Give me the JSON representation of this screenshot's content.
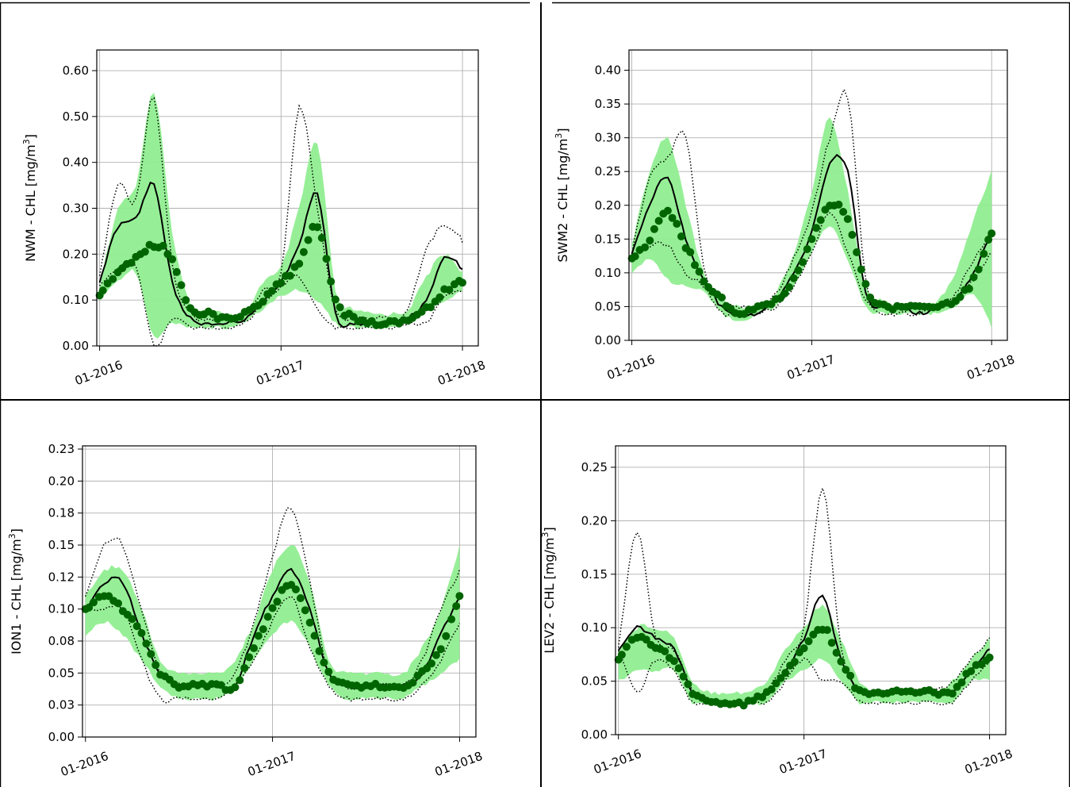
{
  "chart_data": [
    {
      "type": "line",
      "id": "NWM",
      "ylabel_prefix": "NWM - CHL [mg/m",
      "ylabel_sup": "3",
      "ylabel_suffix": "]",
      "ylim": [
        0,
        0.645
      ],
      "yticks": [
        0.0,
        0.1,
        0.2,
        0.3,
        0.4,
        0.5,
        0.6
      ],
      "yticklabels": [
        "0.00",
        "0.10",
        "0.20",
        "0.30",
        "0.40",
        "0.50",
        "0.60"
      ],
      "xticklabels": [
        "01-2016",
        "01-2017",
        "01-2018"
      ],
      "grid": true,
      "x": [
        0,
        0.1,
        0.2,
        0.3,
        0.4,
        0.5,
        0.6,
        0.7,
        0.8,
        0.9,
        1.0,
        1.1,
        1.2,
        1.3,
        1.4,
        1.5,
        1.6,
        1.7,
        1.8,
        1.9,
        2.0
      ],
      "series": [
        {
          "role": "band_high",
          "values": [
            0.13,
            0.3,
            0.35,
            0.55,
            0.25,
            0.09,
            0.08,
            0.07,
            0.07,
            0.14,
            0.17,
            0.3,
            0.44,
            0.12,
            0.08,
            0.07,
            0.07,
            0.08,
            0.15,
            0.2,
            0.16
          ]
        },
        {
          "role": "band_low",
          "values": [
            0.1,
            0.14,
            0.16,
            0.02,
            0.05,
            0.04,
            0.04,
            0.04,
            0.05,
            0.08,
            0.11,
            0.12,
            0.1,
            0.05,
            0.04,
            0.04,
            0.04,
            0.05,
            0.08,
            0.1,
            0.12
          ]
        },
        {
          "role": "dotted_upper",
          "values": [
            0.15,
            0.35,
            0.32,
            0.54,
            0.18,
            0.07,
            0.06,
            0.06,
            0.07,
            0.12,
            0.16,
            0.52,
            0.3,
            0.08,
            0.06,
            0.06,
            0.06,
            0.08,
            0.21,
            0.26,
            0.23
          ]
        },
        {
          "role": "dotted_lower",
          "values": [
            0.13,
            0.17,
            0.17,
            0.0,
            0.06,
            0.04,
            0.04,
            0.04,
            0.05,
            0.09,
            0.13,
            0.15,
            0.08,
            0.04,
            0.04,
            0.04,
            0.04,
            0.05,
            0.05,
            0.11,
            0.12
          ]
        },
        {
          "role": "line_mean",
          "values": [
            0.14,
            0.26,
            0.28,
            0.35,
            0.14,
            0.06,
            0.05,
            0.05,
            0.06,
            0.1,
            0.14,
            0.22,
            0.33,
            0.07,
            0.05,
            0.05,
            0.05,
            0.06,
            0.1,
            0.19,
            0.17
          ]
        },
        {
          "role": "dots",
          "values": [
            0.11,
            0.16,
            0.19,
            0.22,
            0.19,
            0.08,
            0.07,
            0.06,
            0.07,
            0.1,
            0.14,
            0.18,
            0.26,
            0.1,
            0.06,
            0.05,
            0.05,
            0.06,
            0.08,
            0.12,
            0.14
          ]
        }
      ]
    },
    {
      "type": "line",
      "id": "SWM2",
      "ylabel_prefix": "SWM2 - CHL [mg/m",
      "ylabel_sup": "3",
      "ylabel_suffix": "]",
      "ylim": [
        0,
        0.43
      ],
      "yticks": [
        0.0,
        0.05,
        0.1,
        0.15,
        0.2,
        0.25,
        0.3,
        0.35,
        0.4
      ],
      "yticklabels": [
        "0.00",
        "0.05",
        "0.10",
        "0.15",
        "0.20",
        "0.25",
        "0.30",
        "0.35",
        "0.40"
      ],
      "xticklabels": [
        "01-2016",
        "01-2017",
        "01-2018"
      ],
      "grid": true,
      "x": [
        0,
        0.1,
        0.2,
        0.3,
        0.4,
        0.5,
        0.6,
        0.7,
        0.8,
        0.9,
        1.0,
        1.1,
        1.2,
        1.3,
        1.4,
        1.5,
        1.6,
        1.7,
        1.8,
        1.9,
        2.0
      ],
      "series": [
        {
          "role": "band_high",
          "values": [
            0.14,
            0.25,
            0.3,
            0.2,
            0.1,
            0.06,
            0.05,
            0.05,
            0.07,
            0.13,
            0.22,
            0.33,
            0.22,
            0.08,
            0.06,
            0.05,
            0.05,
            0.06,
            0.1,
            0.18,
            0.25
          ]
        },
        {
          "role": "band_low",
          "values": [
            0.1,
            0.12,
            0.09,
            0.08,
            0.07,
            0.04,
            0.03,
            0.04,
            0.05,
            0.08,
            0.13,
            0.17,
            0.12,
            0.05,
            0.04,
            0.04,
            0.04,
            0.04,
            0.05,
            0.07,
            0.02
          ]
        },
        {
          "role": "dotted_upper",
          "values": [
            0.13,
            0.24,
            0.27,
            0.3,
            0.11,
            0.06,
            0.05,
            0.05,
            0.07,
            0.12,
            0.19,
            0.3,
            0.36,
            0.09,
            0.05,
            0.05,
            0.05,
            0.05,
            0.07,
            0.12,
            0.16
          ]
        },
        {
          "role": "dotted_lower",
          "values": [
            0.12,
            0.14,
            0.14,
            0.1,
            0.08,
            0.04,
            0.04,
            0.04,
            0.05,
            0.08,
            0.13,
            0.19,
            0.13,
            0.06,
            0.04,
            0.04,
            0.04,
            0.05,
            0.06,
            0.09,
            0.13
          ]
        },
        {
          "role": "line_mean",
          "values": [
            0.13,
            0.2,
            0.24,
            0.15,
            0.09,
            0.05,
            0.04,
            0.04,
            0.06,
            0.1,
            0.16,
            0.26,
            0.25,
            0.07,
            0.05,
            0.05,
            0.04,
            0.05,
            0.06,
            0.1,
            0.16
          ]
        },
        {
          "role": "dots",
          "values": [
            0.12,
            0.15,
            0.19,
            0.14,
            0.09,
            0.06,
            0.04,
            0.05,
            0.06,
            0.09,
            0.15,
            0.2,
            0.18,
            0.08,
            0.05,
            0.05,
            0.05,
            0.05,
            0.06,
            0.09,
            0.16
          ]
        }
      ]
    },
    {
      "type": "line",
      "id": "ION1",
      "ylabel_prefix": "ION1 - CHL [mg/m",
      "ylabel_sup": "3",
      "ylabel_suffix": "]",
      "ylim": [
        0,
        0.2275
      ],
      "yticks": [
        0.0,
        0.025,
        0.05,
        0.075,
        0.1,
        0.125,
        0.15,
        0.175,
        0.2,
        0.225
      ],
      "yticklabels": [
        "0.00",
        "0.03",
        "0.05",
        "0.08",
        "0.10",
        "0.12",
        "0.15",
        "0.18",
        "0.20",
        "0.23"
      ],
      "xticklabels": [
        "01-2016",
        "01-2017",
        "01-2018"
      ],
      "grid": true,
      "x": [
        0,
        0.1,
        0.2,
        0.3,
        0.4,
        0.5,
        0.6,
        0.7,
        0.8,
        0.9,
        1.0,
        1.1,
        1.2,
        1.3,
        1.4,
        1.5,
        1.6,
        1.7,
        1.8,
        1.9,
        2.0
      ],
      "series": [
        {
          "role": "band_high",
          "values": [
            0.11,
            0.13,
            0.13,
            0.1,
            0.06,
            0.05,
            0.05,
            0.05,
            0.06,
            0.09,
            0.13,
            0.15,
            0.12,
            0.06,
            0.05,
            0.05,
            0.05,
            0.05,
            0.07,
            0.1,
            0.15
          ]
        },
        {
          "role": "band_low",
          "values": [
            0.08,
            0.09,
            0.08,
            0.06,
            0.04,
            0.03,
            0.03,
            0.03,
            0.04,
            0.06,
            0.08,
            0.09,
            0.07,
            0.04,
            0.03,
            0.03,
            0.03,
            0.03,
            0.04,
            0.05,
            0.06
          ]
        },
        {
          "role": "dotted_upper",
          "values": [
            0.11,
            0.15,
            0.15,
            0.1,
            0.05,
            0.04,
            0.04,
            0.04,
            0.05,
            0.09,
            0.14,
            0.18,
            0.12,
            0.05,
            0.04,
            0.04,
            0.04,
            0.04,
            0.06,
            0.1,
            0.13
          ]
        },
        {
          "role": "dotted_lower",
          "values": [
            0.1,
            0.1,
            0.1,
            0.06,
            0.03,
            0.03,
            0.03,
            0.03,
            0.04,
            0.06,
            0.09,
            0.11,
            0.07,
            0.04,
            0.03,
            0.03,
            0.03,
            0.03,
            0.04,
            0.06,
            0.09
          ]
        },
        {
          "role": "line_mean",
          "values": [
            0.1,
            0.12,
            0.12,
            0.08,
            0.05,
            0.04,
            0.04,
            0.04,
            0.04,
            0.08,
            0.11,
            0.13,
            0.1,
            0.05,
            0.04,
            0.04,
            0.04,
            0.04,
            0.05,
            0.08,
            0.11
          ]
        },
        {
          "role": "dots",
          "values": [
            0.1,
            0.11,
            0.1,
            0.08,
            0.05,
            0.04,
            0.04,
            0.04,
            0.04,
            0.07,
            0.1,
            0.12,
            0.09,
            0.05,
            0.04,
            0.04,
            0.04,
            0.04,
            0.05,
            0.07,
            0.11
          ]
        }
      ]
    },
    {
      "type": "line",
      "id": "LEV2",
      "ylabel_prefix": "LEV2 - CHL [mg/m",
      "ylabel_sup": "3",
      "ylabel_suffix": "]",
      "ylim": [
        0,
        0.27
      ],
      "yticks": [
        0.0,
        0.05,
        0.1,
        0.15,
        0.2,
        0.25
      ],
      "yticklabels": [
        "0.00",
        "0.05",
        "0.10",
        "0.15",
        "0.20",
        "0.25"
      ],
      "xticklabels": [
        "01-2016",
        "01-2017",
        "01-2018"
      ],
      "grid": true,
      "x": [
        0,
        0.1,
        0.2,
        0.3,
        0.4,
        0.5,
        0.6,
        0.7,
        0.8,
        0.9,
        1.0,
        1.1,
        1.2,
        1.3,
        1.4,
        1.5,
        1.6,
        1.7,
        1.8,
        1.9,
        2.0
      ],
      "series": [
        {
          "role": "band_high",
          "values": [
            0.08,
            0.1,
            0.1,
            0.09,
            0.05,
            0.04,
            0.04,
            0.04,
            0.05,
            0.08,
            0.1,
            0.12,
            0.09,
            0.05,
            0.04,
            0.04,
            0.04,
            0.04,
            0.05,
            0.07,
            0.09
          ]
        },
        {
          "role": "band_low",
          "values": [
            0.05,
            0.06,
            0.06,
            0.06,
            0.03,
            0.03,
            0.03,
            0.03,
            0.03,
            0.05,
            0.06,
            0.07,
            0.05,
            0.03,
            0.03,
            0.03,
            0.03,
            0.03,
            0.03,
            0.05,
            0.05
          ]
        },
        {
          "role": "dotted_upper",
          "values": [
            0.08,
            0.19,
            0.09,
            0.08,
            0.04,
            0.03,
            0.03,
            0.03,
            0.04,
            0.07,
            0.1,
            0.23,
            0.08,
            0.04,
            0.04,
            0.04,
            0.04,
            0.04,
            0.05,
            0.07,
            0.09
          ]
        },
        {
          "role": "dotted_lower",
          "values": [
            0.08,
            0.04,
            0.07,
            0.06,
            0.03,
            0.03,
            0.03,
            0.03,
            0.03,
            0.05,
            0.07,
            0.05,
            0.05,
            0.03,
            0.03,
            0.03,
            0.03,
            0.03,
            0.03,
            0.05,
            0.07
          ]
        },
        {
          "role": "line_mean",
          "values": [
            0.08,
            0.1,
            0.09,
            0.08,
            0.04,
            0.03,
            0.03,
            0.03,
            0.04,
            0.06,
            0.09,
            0.13,
            0.07,
            0.04,
            0.04,
            0.04,
            0.04,
            0.04,
            0.04,
            0.06,
            0.08
          ]
        },
        {
          "role": "dots",
          "values": [
            0.07,
            0.09,
            0.08,
            0.07,
            0.04,
            0.03,
            0.03,
            0.03,
            0.04,
            0.06,
            0.08,
            0.1,
            0.07,
            0.04,
            0.04,
            0.04,
            0.04,
            0.04,
            0.04,
            0.06,
            0.07
          ]
        }
      ]
    }
  ],
  "colors": {
    "band": "#90ee90",
    "line_mean": "#000000",
    "dotted": "#000000",
    "dots": "#006400",
    "grid": "#b0b0b0"
  }
}
